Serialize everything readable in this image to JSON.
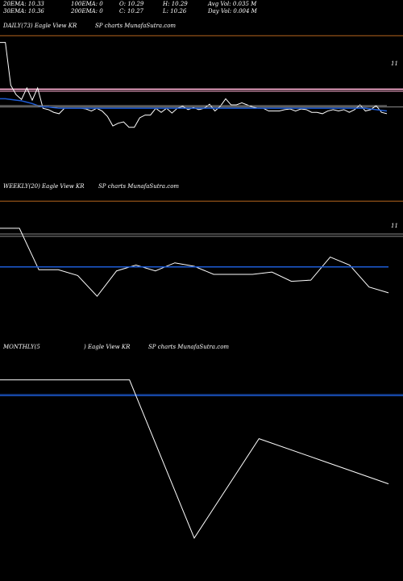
{
  "header": {
    "ema20": "20EMA: 10.33",
    "ema100": "100EMA: 0",
    "open": "O: 10.29",
    "high": "H: 10.29",
    "avg_vol": "Avg Vol: 0.035 M",
    "ema30": "30EMA: 10.36",
    "ema200": "200EMA: 0",
    "close": "C: 10.27",
    "low": "L: 10.26",
    "day_vol": "Day Vol: 0.004 M"
  },
  "panels": [
    {
      "title": "DAILY(73) Eagle   View  KR",
      "subtitle": "SP charts MunafaSutra.com",
      "edge_label": "11"
    },
    {
      "title": "WEEKLY(20) Eagle   View  KR",
      "subtitle": "SP charts MunafaSutra.com",
      "edge_label": "11"
    },
    {
      "title": "MONTHLY(5",
      "title2": ") Eagle   View  KR",
      "subtitle": "SP charts MunafaSutra.com"
    }
  ],
  "colors": {
    "background": "#000000",
    "price": "#ffffff",
    "ema_short": "#1e5cd6",
    "ema_long": "#8a8a8a",
    "resistance": "#e8a0c0",
    "top_line": "#b5651d"
  },
  "chart_data": [
    {
      "type": "line",
      "name": "daily",
      "ylim": [
        9.0,
        11.2
      ],
      "x": [
        0,
        1,
        2,
        3,
        4,
        5,
        6,
        7,
        8,
        9,
        10,
        11,
        12,
        13,
        14,
        15,
        16,
        17,
        18,
        19,
        20,
        21,
        22,
        23,
        24,
        25,
        26,
        27,
        28,
        29,
        30,
        31,
        32,
        33,
        34,
        35,
        36,
        37,
        38,
        39,
        40,
        41,
        42,
        43,
        44,
        45,
        46,
        47,
        48,
        49,
        50,
        51,
        52,
        53,
        54,
        55,
        56,
        57,
        58,
        59,
        60,
        61,
        62,
        63,
        64,
        65,
        66,
        67,
        68,
        69,
        70,
        71,
        72
      ],
      "series": [
        {
          "values": [
            11.05,
            11.05,
            10.42,
            10.28,
            10.21,
            10.38,
            10.2,
            10.38,
            10.08,
            10.06,
            10.02,
            10.0,
            10.08,
            10.08,
            10.08,
            10.08,
            10.07,
            10.04,
            10.08,
            10.04,
            9.96,
            9.82,
            9.86,
            9.88,
            9.8,
            9.8,
            9.94,
            9.98,
            9.98,
            10.08,
            10.02,
            10.08,
            10.01,
            10.08,
            10.11,
            10.06,
            10.09,
            10.06,
            10.08,
            10.14,
            10.04,
            10.11,
            10.22,
            10.13,
            10.13,
            10.16,
            10.13,
            10.1,
            10.08,
            10.08,
            10.04,
            10.04,
            10.04,
            10.06,
            10.07,
            10.04,
            10.07,
            10.06,
            10.02,
            10.02,
            10.0,
            10.04,
            10.06,
            10.04,
            10.06,
            10.02,
            10.06,
            10.13,
            10.04,
            10.06,
            10.12,
            10.02,
            10.0
          ]
        },
        {
          "values": [
            10.22,
            10.22,
            10.21,
            10.2,
            10.19,
            10.17,
            10.15,
            10.12,
            10.1,
            10.1,
            10.09,
            10.08,
            10.08,
            10.08,
            10.08,
            10.08,
            10.08,
            10.08,
            10.08,
            10.08,
            10.08,
            10.08,
            10.08,
            10.08,
            10.08,
            10.08,
            10.08,
            10.08,
            10.08,
            10.08,
            10.08,
            10.08,
            10.08,
            10.08,
            10.08,
            10.08,
            10.08,
            10.08,
            10.08,
            10.08,
            10.08,
            10.08,
            10.08,
            10.08,
            10.08,
            10.08,
            10.08,
            10.08,
            10.08,
            10.08,
            10.08,
            10.08,
            10.08,
            10.08,
            10.08,
            10.08,
            10.08,
            10.08,
            10.08,
            10.08,
            10.08,
            10.08,
            10.08,
            10.08,
            10.08,
            10.08,
            10.08,
            10.08,
            10.08,
            10.07,
            10.06,
            10.05,
            10.04
          ]
        },
        {
          "values": [
            10.12,
            10.12,
            10.12,
            10.12,
            10.12,
            10.12,
            10.12,
            10.12,
            10.12,
            10.12,
            10.12,
            10.12,
            10.12,
            10.12,
            10.12,
            10.12,
            10.12,
            10.12,
            10.12,
            10.12,
            10.12,
            10.12,
            10.12,
            10.12,
            10.12,
            10.12,
            10.12,
            10.12,
            10.12,
            10.12,
            10.12,
            10.12,
            10.12,
            10.12,
            10.12,
            10.12,
            10.12,
            10.12,
            10.12,
            10.12,
            10.12,
            10.12,
            10.12,
            10.12,
            10.12,
            10.12,
            10.12,
            10.12,
            10.12,
            10.12,
            10.12,
            10.12,
            10.12,
            10.12,
            10.12,
            10.12,
            10.12,
            10.12,
            10.12,
            10.12,
            10.12,
            10.12,
            10.12,
            10.12,
            10.12,
            10.12,
            10.12,
            10.12,
            10.12,
            10.12,
            10.12,
            10.12,
            10.12
          ]
        }
      ],
      "hlines": [
        11.15,
        10.36,
        10.33,
        10.1
      ]
    },
    {
      "type": "line",
      "name": "weekly",
      "ylim": [
        8.8,
        11.6
      ],
      "x": [
        0,
        1,
        2,
        3,
        4,
        5,
        6,
        7,
        8,
        9,
        10,
        11,
        12,
        13,
        14,
        15,
        16,
        17,
        18,
        19,
        20
      ],
      "series": [
        {
          "values": [
            11.0,
            11.0,
            10.28,
            10.28,
            10.18,
            9.82,
            10.26,
            10.36,
            10.26,
            10.4,
            10.34,
            10.2,
            10.2,
            10.2,
            10.24,
            10.08,
            10.1,
            10.5,
            10.36,
            9.98,
            9.88
          ]
        },
        {
          "values": [
            10.33,
            10.33,
            10.33,
            10.33,
            10.33,
            10.33,
            10.33,
            10.33,
            10.33,
            10.33,
            10.33,
            10.33,
            10.33,
            10.33,
            10.33,
            10.33,
            10.33,
            10.33,
            10.33,
            10.33,
            10.33
          ]
        }
      ],
      "hlines": [
        11.47,
        10.9,
        10.86
      ]
    },
    {
      "type": "line",
      "name": "monthly",
      "ylim": [
        9.2,
        11.2
      ],
      "x": [
        0,
        1,
        2,
        3,
        4,
        5,
        6
      ],
      "series": [
        {
          "values": [
            10.98,
            10.98,
            10.98,
            9.58,
            10.46,
            10.26,
            10.06
          ]
        }
      ],
      "hlines": [
        10.85,
        10.84
      ]
    }
  ]
}
